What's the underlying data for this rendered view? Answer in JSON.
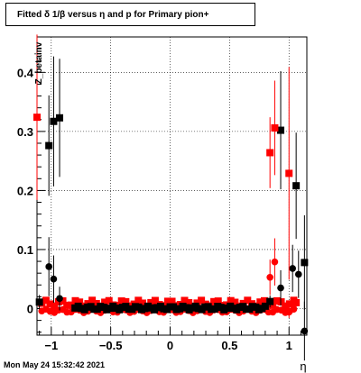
{
  "chart_data": {
    "type": "scatter",
    "title": "Fitted δ 1/β versus η and p for Primary pion+",
    "xlabel": "η",
    "ylabel": "Z_betainv",
    "xlim": [
      -1.12,
      1.15
    ],
    "ylim": [
      -0.045,
      0.46
    ],
    "x_ticks": [
      -1,
      -0.5,
      0,
      0.5,
      1
    ],
    "x_tick_labels": [
      "−1",
      "−0.5",
      "0",
      "0.5",
      "1"
    ],
    "y_ticks": [
      0,
      0.1,
      0.2,
      0.3,
      0.4
    ],
    "y_tick_labels": [
      "0",
      "0.1",
      "0.2",
      "0.3",
      "0.4"
    ],
    "grid": true,
    "series": [
      {
        "marker": "square",
        "color": "#000000",
        "points": [
          {
            "x": -1.1,
            "y": 0.011,
            "err": 0.012
          },
          {
            "x": -1.02,
            "y": 0.276,
            "err": 0.085
          },
          {
            "x": -0.98,
            "y": 0.317,
            "err": 0.11
          },
          {
            "x": -0.93,
            "y": 0.323,
            "err": 0.1
          },
          {
            "x": 0.84,
            "y": 0.012,
            "err": 0.01
          },
          {
            "x": 0.93,
            "y": 0.302,
            "err": 0.1
          },
          {
            "x": 1.06,
            "y": 0.208,
            "err": 0.09
          },
          {
            "x": 1.13,
            "y": 0.078,
            "err": 0.08
          }
        ]
      },
      {
        "marker": "circle",
        "color": "#000000",
        "points": [
          {
            "x": -1.02,
            "y": 0.071,
            "err": 0.05
          },
          {
            "x": -0.98,
            "y": 0.05,
            "err": 0.04
          },
          {
            "x": -0.93,
            "y": 0.017,
            "err": 0.02
          },
          {
            "x": 0.93,
            "y": 0.035,
            "err": 0.03
          },
          {
            "x": 1.03,
            "y": 0.068,
            "err": 0.04
          },
          {
            "x": 1.08,
            "y": 0.058,
            "err": 0.04
          },
          {
            "x": 1.13,
            "y": -0.038,
            "err": 0.05
          }
        ]
      },
      {
        "marker": "square",
        "color": "#ff0000",
        "points": [
          {
            "x": -1.12,
            "y": 0.324,
            "err": 0.14
          },
          {
            "x": 0.84,
            "y": 0.264,
            "err": 0.06
          },
          {
            "x": 0.88,
            "y": 0.306,
            "err": 0.08
          },
          {
            "x": 1.0,
            "y": 0.229,
            "err": 0.18
          },
          {
            "x": 1.06,
            "y": 0.01,
            "err": 0.01
          }
        ]
      },
      {
        "marker": "circle",
        "color": "#ff0000",
        "points": [
          {
            "x": 0.84,
            "y": 0.053,
            "err": 0.03
          },
          {
            "x": 0.88,
            "y": 0.079,
            "err": 0.04
          },
          {
            "x": 1.0,
            "y": -0.006,
            "err": 0.01
          }
        ]
      }
    ],
    "bands": [
      {
        "marker": "square",
        "color": "#ff0000",
        "x_from": -1.08,
        "x_to": 1.04,
        "y_center": 0.009,
        "y_amplitude": 0.005
      },
      {
        "marker": "circle",
        "color": "#ff0000",
        "x_from": -1.08,
        "x_to": 1.04,
        "y_center": -0.004,
        "y_amplitude": 0.003
      },
      {
        "marker": "square",
        "color": "#000000",
        "x_from": -0.8,
        "x_to": 0.8,
        "y_center": 0.001,
        "y_amplitude": 0.003
      }
    ]
  },
  "footer": {
    "timestamp": "Mon May 24 15:32:42 2021"
  }
}
